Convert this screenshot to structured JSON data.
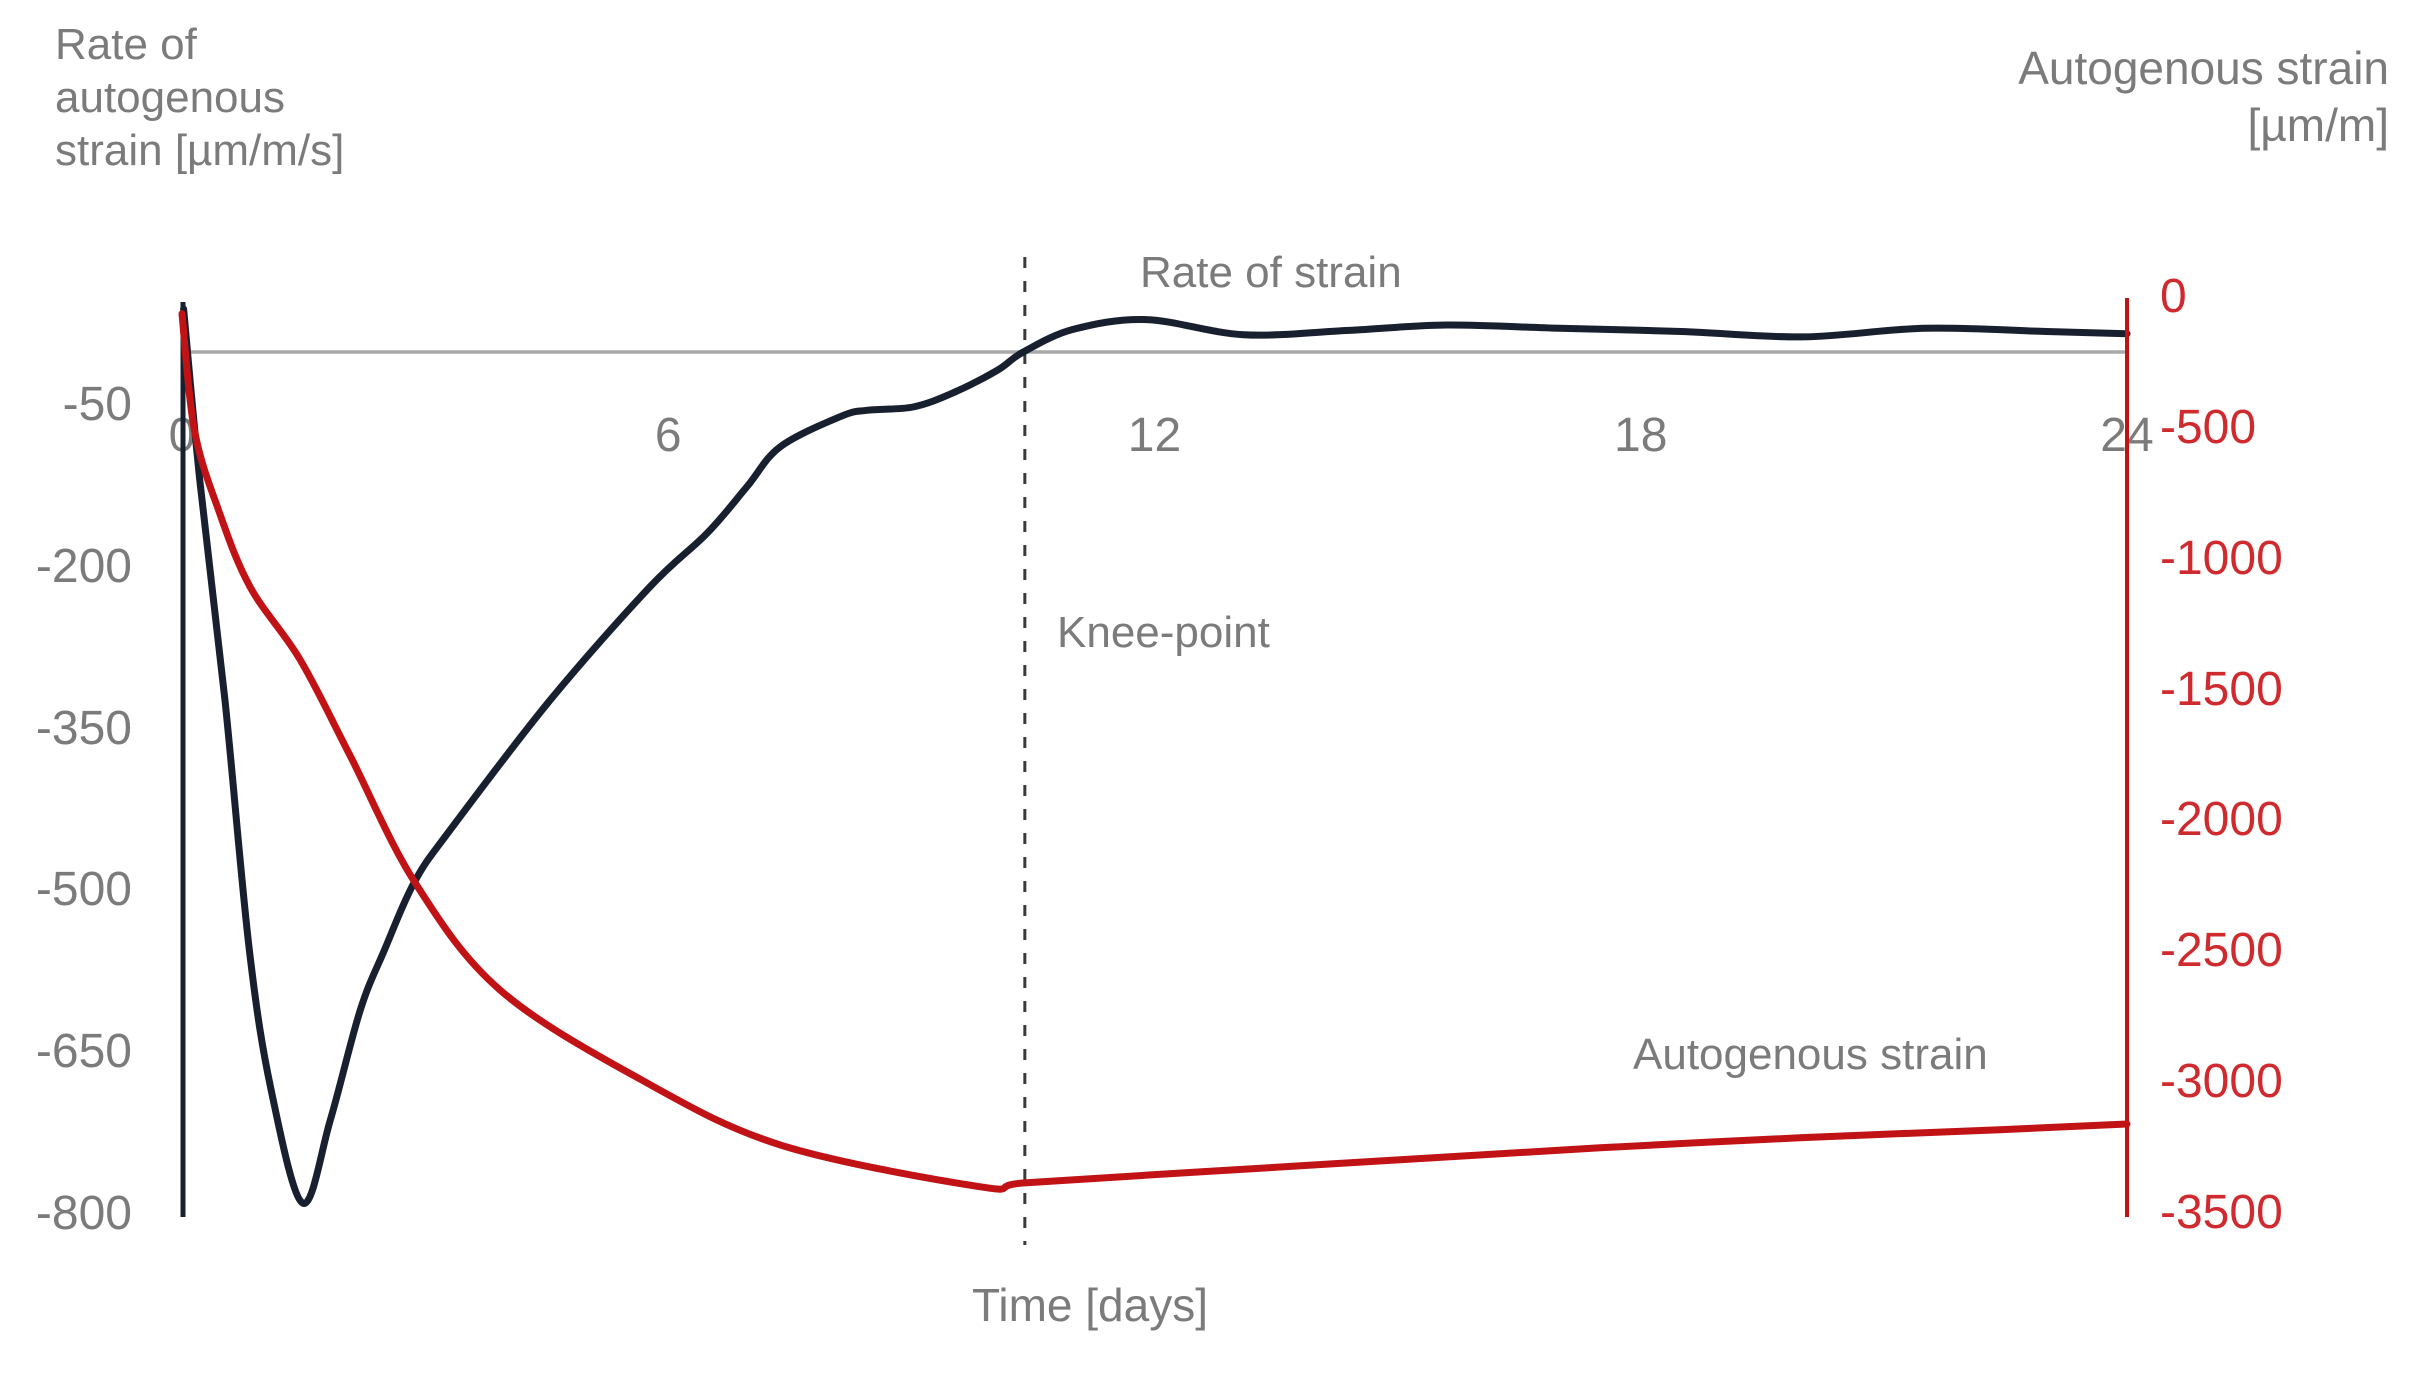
{
  "page": {
    "background": "#ffffff"
  },
  "colors": {
    "text_gray": "#7b7b7b",
    "zero_line_gray": "#a9a9a9",
    "rate_curve": "#18202f",
    "strain_curve": "#c11215",
    "right_tick_red": "#cf2a2e",
    "dashed_line": "#3a3a3a"
  },
  "titles": {
    "left_line1": "Rate of",
    "left_line2": "autogenous",
    "left_line3": "strain [µm/m/s]",
    "right_line1": "Autogenous strain",
    "right_line2": "[µm/m]"
  },
  "annotations": {
    "rate_of_strain": "Rate of strain",
    "knee_point": "Knee-point",
    "autogenous_strain": "Autogenous strain",
    "time_axis": "Time [days]"
  },
  "chart_data": {
    "type": "line",
    "xlabel": "Time [days]",
    "x_range": [
      0,
      24
    ],
    "x_ticks": [
      0,
      6,
      12,
      18,
      24
    ],
    "grid": "off",
    "zero_gridline": true,
    "knee_point_day": 10.4,
    "left_axis": {
      "label": "Rate of autogenous strain [µm/m/s]",
      "units": "µm/m/s",
      "ticks": [
        -50,
        -200,
        -350,
        -500,
        -650,
        -800
      ],
      "range": [
        -800,
        50
      ]
    },
    "right_axis": {
      "label": "Autogenous strain [µm/m]",
      "units": "µm/m",
      "ticks": [
        0,
        -500,
        -1000,
        -1500,
        -2000,
        -2500,
        -3000,
        -3500
      ],
      "range": [
        -3500,
        0
      ]
    },
    "series": [
      {
        "name": "Rate of strain",
        "axis": "left",
        "color": "#18202f",
        "points": [
          [
            0.02,
            40
          ],
          [
            0.22,
            -119
          ],
          [
            0.53,
            -323
          ],
          [
            0.83,
            -554
          ],
          [
            1.1,
            -684
          ],
          [
            1.49,
            -789
          ],
          [
            1.83,
            -712
          ],
          [
            2.2,
            -610
          ],
          [
            2.5,
            -554
          ],
          [
            2.87,
            -491
          ],
          [
            3.31,
            -443
          ],
          [
            4.54,
            -323
          ],
          [
            5.77,
            -218
          ],
          [
            6.48,
            -168
          ],
          [
            6.97,
            -125
          ],
          [
            7.38,
            -88
          ],
          [
            8.12,
            -60
          ],
          [
            8.45,
            -54
          ],
          [
            9.02,
            -51
          ],
          [
            9.51,
            -38
          ],
          [
            10.06,
            -17
          ],
          [
            10.38,
            0
          ],
          [
            11.0,
            21
          ],
          [
            11.9,
            30
          ],
          [
            13.1,
            16
          ],
          [
            14.4,
            20
          ],
          [
            15.6,
            25
          ],
          [
            17.0,
            22
          ],
          [
            18.5,
            19
          ],
          [
            20.0,
            14
          ],
          [
            21.5,
            22
          ],
          [
            23.0,
            19
          ],
          [
            24.0,
            17
          ]
        ]
      },
      {
        "name": "Autogenous strain",
        "axis": "right",
        "color": "#c11215",
        "points": [
          [
            0.0,
            -60
          ],
          [
            0.15,
            -500
          ],
          [
            0.45,
            -810
          ],
          [
            0.84,
            -1104
          ],
          [
            1.46,
            -1383
          ],
          [
            2.07,
            -1746
          ],
          [
            2.87,
            -2231
          ],
          [
            3.92,
            -2643
          ],
          [
            5.65,
            -2984
          ],
          [
            7.38,
            -3236
          ],
          [
            9.85,
            -3396
          ],
          [
            10.4,
            -3381
          ],
          [
            12.56,
            -3339
          ],
          [
            15.03,
            -3293
          ],
          [
            17.5,
            -3247
          ],
          [
            19.96,
            -3209
          ],
          [
            22.43,
            -3178
          ],
          [
            24.0,
            -3156
          ]
        ]
      }
    ]
  }
}
